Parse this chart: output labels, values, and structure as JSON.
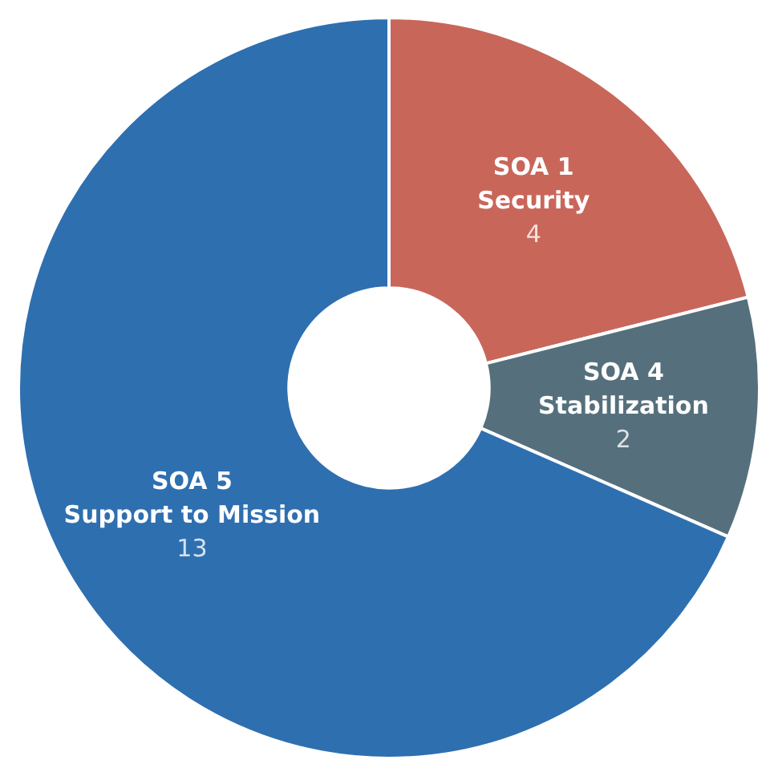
{
  "chart_data": {
    "type": "donut",
    "categories": [
      "SOA 1\nSecurity",
      "SOA 4\nStabilization",
      "SOA 5\nSupport to Mission"
    ],
    "values": [
      4,
      2,
      13
    ],
    "colors": [
      "#c9665a",
      "#55707c",
      "#2e6fb0"
    ],
    "data_labels": true,
    "legend": false
  }
}
